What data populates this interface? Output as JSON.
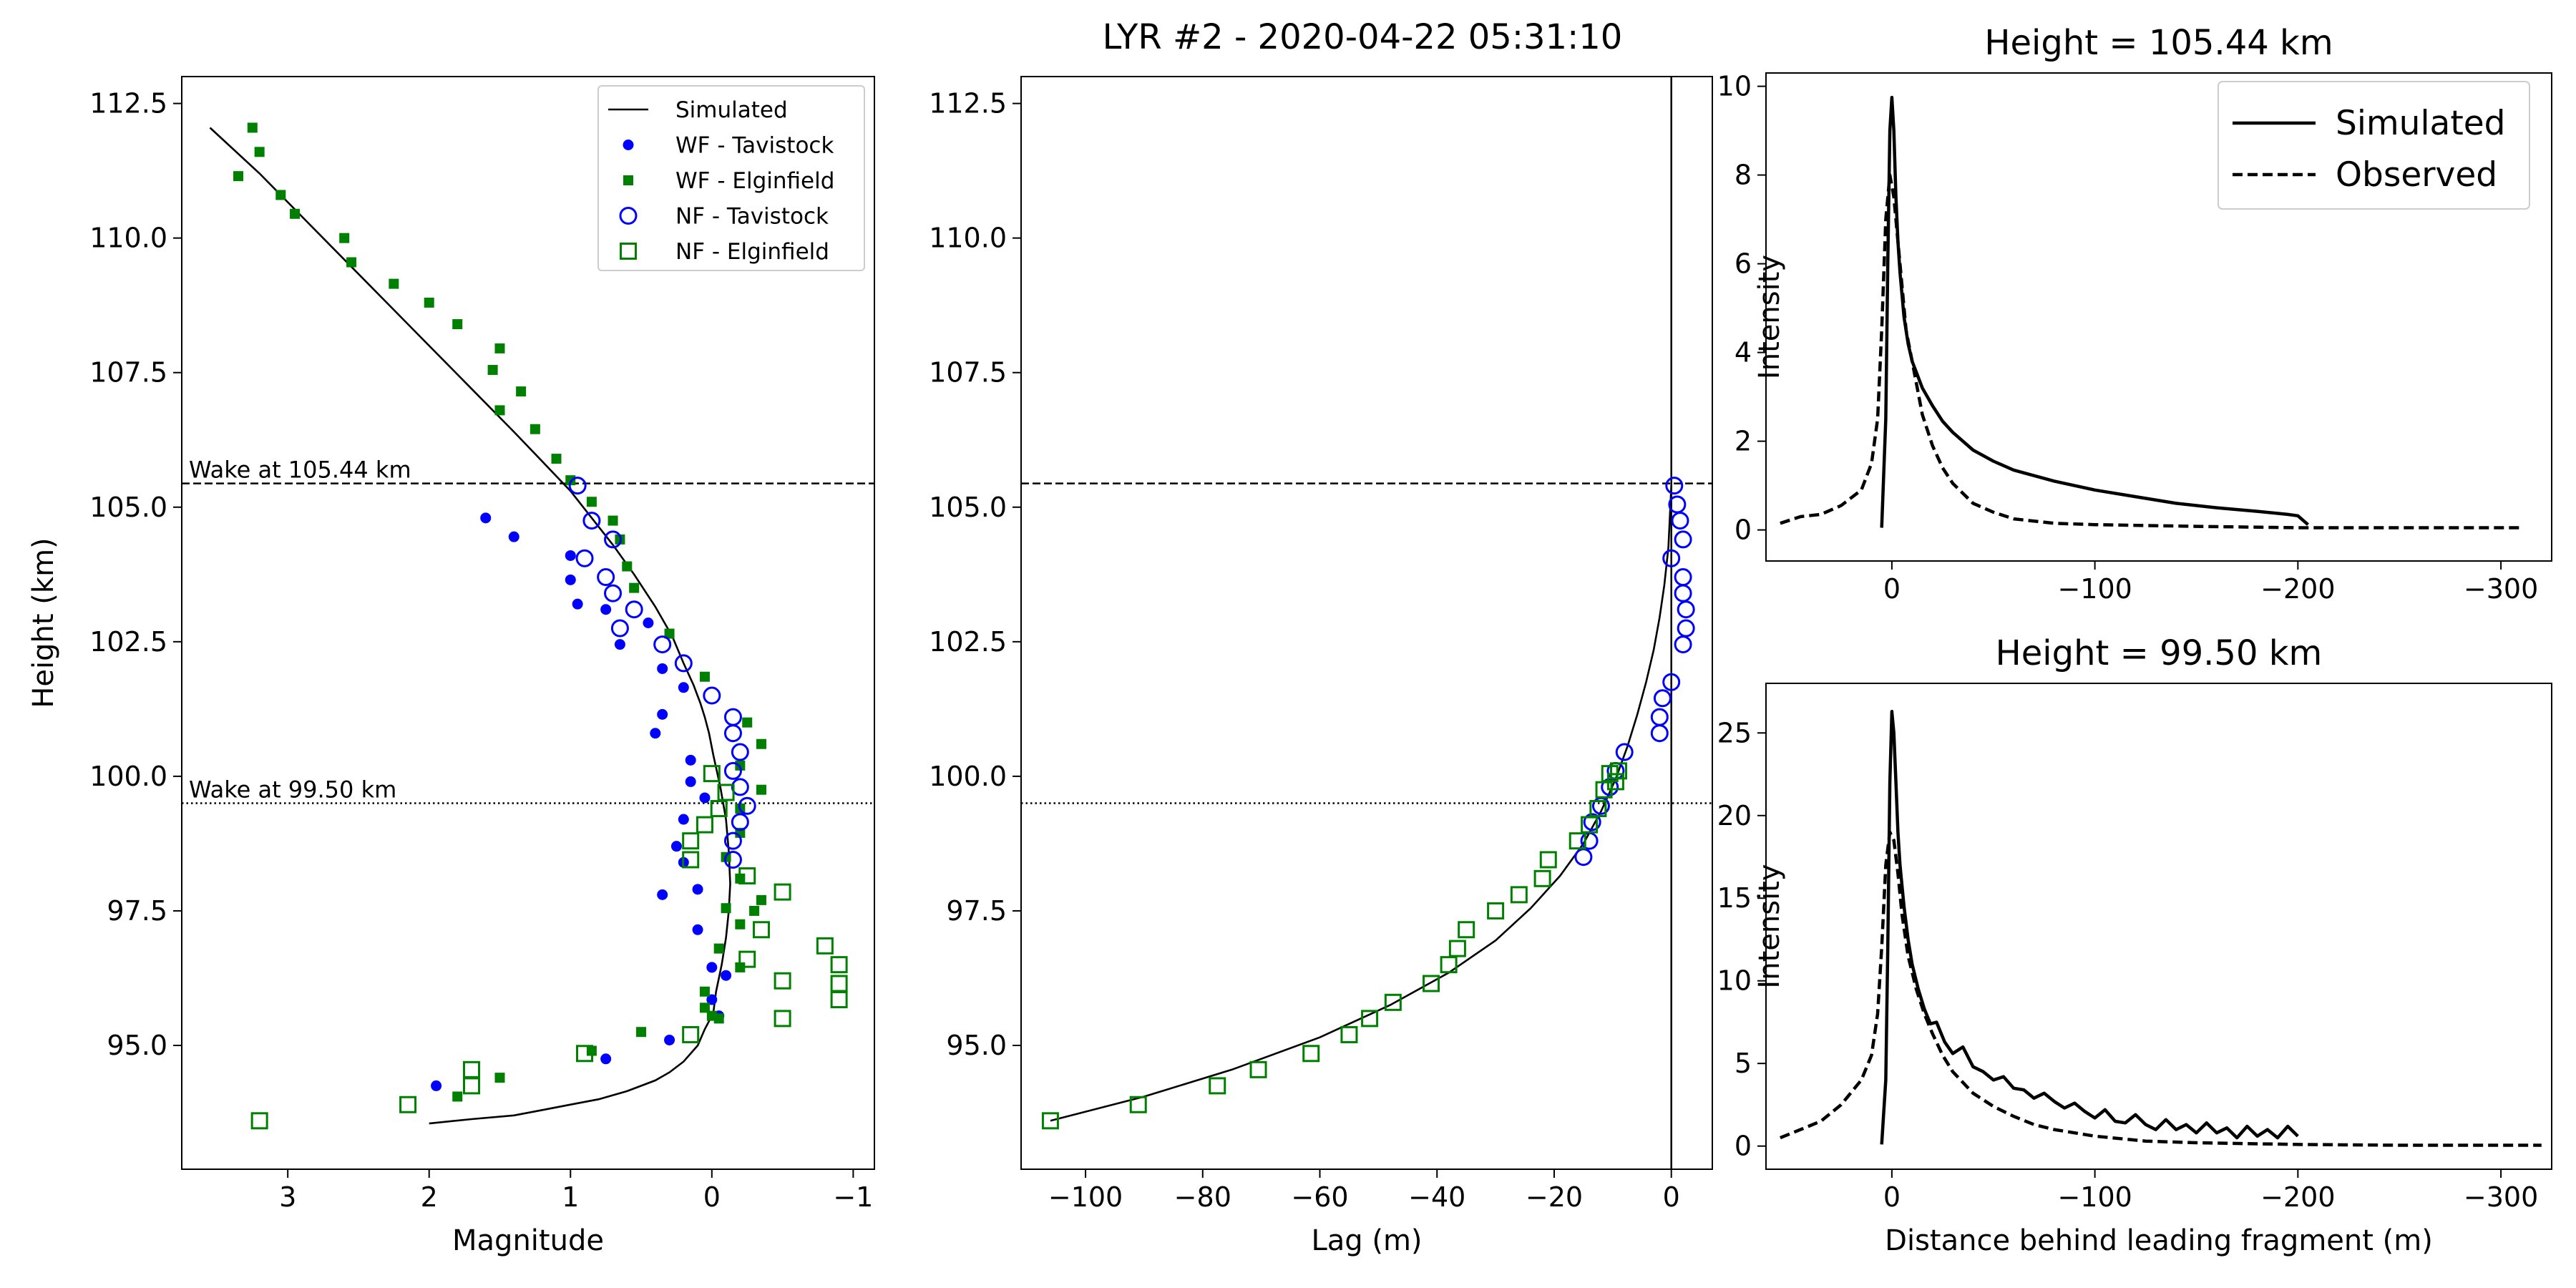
{
  "suptitle": "LYR #2 - 2020-04-22 05:31:10",
  "chart_data": [
    {
      "type": "scatter",
      "xlabel": "Magnitude",
      "ylabel": "Height (km)",
      "xlim": [
        3.75,
        -1.15
      ],
      "ylim": [
        92.7,
        113.0
      ],
      "x_inverted": true,
      "xticks": [
        3,
        2,
        1,
        0,
        -1
      ],
      "xtick_labels": [
        "3",
        "2",
        "1",
        "0",
        "−1"
      ],
      "yticks": [
        95.0,
        97.5,
        100.0,
        102.5,
        105.0,
        107.5,
        110.0,
        112.5
      ],
      "ytick_labels": [
        "95.0",
        "97.5",
        "100.0",
        "102.5",
        "105.0",
        "107.5",
        "110.0",
        "112.5"
      ],
      "hlines": [
        {
          "y": 105.44,
          "style": "dashed",
          "label": "Wake at 105.44 km"
        },
        {
          "y": 99.5,
          "style": "dotted",
          "label": "Wake at 99.50 km"
        }
      ],
      "legend_location": "upper right",
      "series": [
        {
          "name": "Simulated",
          "kind": "line",
          "color": "#000000",
          "x": [
            3.55,
            3.2,
            2.9,
            2.6,
            2.3,
            2.0,
            1.7,
            1.4,
            1.2,
            1.0,
            0.85,
            0.7,
            0.55,
            0.4,
            0.28,
            0.2,
            0.13,
            0.08,
            0.05,
            0.02,
            -0.01,
            -0.06,
            -0.1,
            -0.12,
            -0.13,
            -0.12,
            -0.1,
            -0.07,
            -0.03,
            -0.01,
            0.05,
            0.1,
            0.2,
            0.3,
            0.4,
            0.6,
            0.8,
            1.0,
            1.2,
            1.4,
            1.7,
            2.0
          ],
          "y": [
            112.05,
            111.2,
            110.4,
            109.6,
            108.8,
            108.0,
            107.2,
            106.4,
            105.85,
            105.3,
            104.8,
            104.3,
            103.75,
            103.15,
            102.6,
            102.1,
            101.7,
            101.35,
            101.1,
            100.8,
            100.4,
            99.8,
            99.2,
            98.6,
            98.0,
            97.5,
            97.0,
            96.5,
            96.0,
            95.6,
            95.3,
            95.0,
            94.7,
            94.5,
            94.35,
            94.15,
            94.0,
            93.9,
            93.8,
            93.7,
            93.63,
            93.55
          ]
        },
        {
          "name": "WF - Tavistock",
          "kind": "marker",
          "marker": "dot",
          "color": "#0000ff",
          "x": [
            1.6,
            1.4,
            1.0,
            1.0,
            0.95,
            0.75,
            0.65,
            0.45,
            0.35,
            0.2,
            0.35,
            0.4,
            0.15,
            0.15,
            0.2,
            0.05,
            0.25,
            0.2,
            0.35,
            0.1,
            0.1,
            0.0,
            -0.1,
            0.0,
            -0.05,
            0.3,
            0.75,
            1.95
          ],
          "y": [
            104.8,
            104.45,
            104.1,
            103.65,
            103.2,
            103.1,
            102.45,
            102.85,
            102.0,
            101.65,
            101.15,
            100.8,
            100.3,
            99.9,
            99.2,
            99.6,
            98.7,
            98.4,
            97.8,
            97.9,
            97.15,
            96.45,
            96.3,
            95.85,
            95.55,
            95.1,
            94.75,
            94.25
          ]
        },
        {
          "name": "WF - Elginfield",
          "kind": "marker",
          "marker": "square",
          "color": "#008000",
          "x": [
            3.25,
            3.2,
            3.35,
            3.05,
            2.95,
            2.6,
            2.55,
            2.25,
            2.0,
            1.8,
            1.55,
            1.5,
            1.5,
            1.35,
            1.25,
            1.1,
            1.0,
            0.85,
            0.7,
            0.65,
            0.6,
            0.55,
            0.3,
            0.05,
            -0.25,
            -0.35,
            -0.35,
            -0.2,
            -0.2,
            -0.2,
            -0.1,
            -0.2,
            -0.35,
            -0.3,
            -0.1,
            -0.2,
            -0.05,
            -0.2,
            0.05,
            0.05,
            0.0,
            -0.05,
            0.5,
            0.85,
            1.5,
            1.8
          ],
          "y": [
            112.05,
            111.6,
            111.15,
            110.8,
            110.45,
            110.0,
            109.55,
            109.15,
            108.8,
            108.4,
            107.55,
            107.95,
            106.8,
            107.15,
            106.45,
            105.9,
            105.5,
            105.1,
            104.75,
            104.4,
            103.9,
            103.5,
            102.65,
            101.85,
            101.0,
            100.6,
            99.75,
            100.2,
            99.4,
            98.95,
            98.5,
            98.1,
            97.7,
            97.5,
            97.55,
            97.25,
            96.8,
            96.45,
            96.0,
            95.7,
            95.55,
            95.5,
            95.25,
            94.9,
            94.4,
            94.05
          ]
        },
        {
          "name": "NF - Tavistock",
          "kind": "marker",
          "marker": "circle-open",
          "color": "#0000ff",
          "x": [
            0.95,
            0.85,
            0.7,
            0.9,
            0.75,
            0.7,
            0.55,
            0.65,
            0.35,
            0.2,
            0.0,
            -0.15,
            -0.15,
            -0.2,
            -0.15,
            -0.2,
            -0.25,
            -0.2,
            -0.15,
            -0.15
          ],
          "y": [
            105.4,
            104.75,
            104.4,
            104.05,
            103.7,
            103.4,
            103.1,
            102.75,
            102.45,
            102.1,
            101.5,
            101.1,
            100.8,
            100.45,
            100.1,
            99.8,
            99.45,
            99.15,
            98.8,
            98.45
          ]
        },
        {
          "name": "NF - Elginfield",
          "kind": "marker",
          "marker": "square-open",
          "color": "#008000",
          "x": [
            3.2,
            2.15,
            1.7,
            1.7,
            0.9,
            0.0,
            -0.1,
            0.15,
            0.15,
            0.05,
            -0.05,
            -0.25,
            -0.5,
            -0.35,
            -0.5,
            -0.8,
            -0.9,
            -0.9,
            -0.9,
            -0.5,
            -0.25,
            0.15
          ],
          "y": [
            93.6,
            93.9,
            94.25,
            94.55,
            94.85,
            100.05,
            99.7,
            98.8,
            98.45,
            99.1,
            99.4,
            98.15,
            97.85,
            97.15,
            95.5,
            96.85,
            96.5,
            96.15,
            95.85,
            96.2,
            96.6,
            95.2
          ]
        }
      ]
    },
    {
      "type": "scatter",
      "xlabel": "Lag (m)",
      "ylabel": "",
      "xlim": [
        -111,
        7
      ],
      "ylim": [
        92.7,
        113.0
      ],
      "xticks": [
        -100,
        -80,
        -60,
        -40,
        -20,
        0
      ],
      "xtick_labels": [
        "−100",
        "−80",
        "−60",
        "−40",
        "−20",
        "0"
      ],
      "yticks": [
        95.0,
        97.5,
        100.0,
        102.5,
        105.0,
        107.5,
        110.0,
        112.5
      ],
      "ytick_labels": [
        "95.0",
        "97.5",
        "100.0",
        "102.5",
        "105.0",
        "107.5",
        "110.0",
        "112.5"
      ],
      "vlines": [
        {
          "x": 0,
          "style": "solid"
        }
      ],
      "hlines": [
        {
          "y": 105.44,
          "style": "dashed"
        },
        {
          "y": 99.5,
          "style": "dotted"
        }
      ],
      "series": [
        {
          "kind": "line",
          "color": "#000000",
          "x": [
            -106,
            -90,
            -75,
            -60,
            -48,
            -38,
            -30,
            -24,
            -19,
            -15,
            -12,
            -9.5,
            -7.5,
            -5.8,
            -4.3,
            -3,
            -2,
            -1.2,
            -0.5,
            0
          ],
          "y": [
            93.6,
            94.05,
            94.55,
            95.15,
            95.75,
            96.35,
            96.95,
            97.55,
            98.15,
            98.75,
            99.35,
            99.95,
            100.55,
            101.15,
            101.75,
            102.35,
            102.95,
            103.55,
            104.25,
            105.4
          ]
        },
        {
          "name": "NF - Tavistock",
          "kind": "marker",
          "marker": "circle-open",
          "color": "#0000ff",
          "x": [
            0.5,
            1.0,
            1.5,
            2.0,
            0.0,
            2.0,
            2.0,
            2.5,
            2.5,
            2.0,
            0.0,
            -1.5,
            -2.0,
            -2.0,
            -8.0,
            -9.5,
            -10.5,
            -12.0,
            -13.5,
            -14.0,
            -15.0
          ],
          "y": [
            105.4,
            105.05,
            104.75,
            104.4,
            104.05,
            103.7,
            103.4,
            103.1,
            102.75,
            102.45,
            101.75,
            101.45,
            101.1,
            100.8,
            100.45,
            100.1,
            99.8,
            99.45,
            99.15,
            98.8,
            98.5
          ]
        },
        {
          "name": "NF - Elginfield",
          "kind": "marker",
          "marker": "square-open",
          "color": "#008000",
          "x": [
            -106,
            -91,
            -77.5,
            -70.5,
            -61.5,
            -55,
            -51.5,
            -47.5,
            -41,
            -38,
            -36.5,
            -35,
            -30,
            -26,
            -22,
            -21,
            -16,
            -14,
            -12.5,
            -11.5,
            -10.5,
            -9.5,
            -9
          ],
          "y": [
            93.6,
            93.9,
            94.25,
            94.55,
            94.85,
            95.2,
            95.5,
            95.8,
            96.15,
            96.5,
            96.8,
            97.15,
            97.5,
            97.8,
            98.1,
            98.45,
            98.8,
            99.1,
            99.4,
            99.75,
            100.05,
            99.9,
            100.1
          ]
        }
      ]
    },
    {
      "type": "line",
      "title": "Height = 105.44 km",
      "xlabel": "",
      "ylabel": "Intensity",
      "xlim": [
        62,
        -325
      ],
      "x_inverted": true,
      "ylim": [
        -0.7,
        10.3
      ],
      "xticks": [
        0,
        -100,
        -200,
        -300
      ],
      "xtick_labels": [
        "0",
        "−100",
        "−200",
        "−300"
      ],
      "yticks": [
        0,
        2,
        4,
        6,
        8,
        10
      ],
      "ytick_labels": [
        "0",
        "2",
        "4",
        "6",
        "8",
        "10"
      ],
      "legend_location": "upper right",
      "series": [
        {
          "name": "Simulated",
          "style": "solid",
          "x": [
            5,
            3,
            2,
            1,
            0,
            -1,
            -2,
            -3,
            -4,
            -6,
            -8,
            -10,
            -15,
            -20,
            -25,
            -30,
            -40,
            -50,
            -60,
            -80,
            -100,
            -120,
            -140,
            -160,
            -180,
            -195,
            -200,
            -205
          ],
          "y": [
            0.05,
            2.5,
            6.0,
            9.0,
            9.75,
            9.0,
            7.5,
            6.5,
            5.8,
            4.8,
            4.2,
            3.8,
            3.2,
            2.8,
            2.45,
            2.2,
            1.8,
            1.55,
            1.35,
            1.1,
            0.9,
            0.75,
            0.6,
            0.5,
            0.42,
            0.35,
            0.32,
            0.12
          ]
        },
        {
          "name": "Observed",
          "style": "dashed",
          "x": [
            55,
            45,
            35,
            25,
            15,
            10,
            7,
            5,
            3,
            1,
            -1,
            -3,
            -5,
            -7,
            -10,
            -15,
            -20,
            -25,
            -30,
            -40,
            -50,
            -60,
            -80,
            -100,
            -150,
            -200,
            -250,
            -310
          ],
          "y": [
            0.15,
            0.3,
            0.35,
            0.55,
            0.9,
            1.5,
            2.5,
            4.5,
            7.0,
            8.0,
            7.5,
            6.5,
            5.5,
            4.5,
            3.8,
            2.6,
            1.9,
            1.4,
            1.05,
            0.6,
            0.4,
            0.25,
            0.15,
            0.12,
            0.08,
            0.05,
            0.05,
            0.05
          ]
        }
      ]
    },
    {
      "type": "line",
      "title": "Height = 99.50 km",
      "xlabel": "Distance behind leading fragment (m)",
      "ylabel": "Intensity",
      "xlim": [
        62,
        -325
      ],
      "x_inverted": true,
      "ylim": [
        -1.4,
        28.0
      ],
      "xticks": [
        0,
        -100,
        -200,
        -300
      ],
      "xtick_labels": [
        "0",
        "−100",
        "−200",
        "−300"
      ],
      "yticks": [
        0,
        5,
        10,
        15,
        20,
        25
      ],
      "ytick_labels": [
        "0",
        "5",
        "10",
        "15",
        "20",
        "25"
      ],
      "series": [
        {
          "name": "Simulated",
          "style": "solid",
          "x": [
            5,
            3,
            2,
            1,
            0,
            -1,
            -2,
            -3,
            -4,
            -6,
            -8,
            -10,
            -13,
            -16,
            -19,
            -22,
            -26,
            -30,
            -35,
            -40,
            -45,
            -50,
            -55,
            -60,
            -65,
            -70,
            -75,
            -80,
            -85,
            -90,
            -95,
            -100,
            -105,
            -110,
            -115,
            -120,
            -125,
            -130,
            -135,
            -140,
            -145,
            -150,
            -155,
            -160,
            -165,
            -170,
            -175,
            -180,
            -185,
            -190,
            -195,
            -200
          ],
          "y": [
            0.1,
            4.0,
            12.0,
            22.0,
            26.3,
            25.0,
            22.0,
            19.0,
            17.0,
            14.5,
            12.5,
            11.0,
            9.5,
            8.3,
            7.4,
            7.5,
            6.3,
            5.6,
            6.0,
            4.8,
            4.5,
            4.0,
            4.2,
            3.5,
            3.4,
            2.9,
            3.2,
            2.7,
            2.3,
            2.6,
            2.1,
            1.7,
            2.2,
            1.5,
            1.4,
            1.9,
            1.3,
            1.0,
            1.6,
            1.0,
            1.3,
            0.8,
            1.4,
            0.8,
            1.1,
            0.5,
            1.2,
            0.6,
            1.0,
            0.5,
            1.2,
            0.6
          ]
        },
        {
          "name": "Observed",
          "style": "dashed",
          "x": [
            55,
            45,
            35,
            25,
            15,
            10,
            7,
            5,
            3,
            1,
            -1,
            -3,
            -5,
            -8,
            -12,
            -16,
            -20,
            -25,
            -30,
            -40,
            -50,
            -60,
            -70,
            -80,
            -100,
            -125,
            -150,
            -200,
            -250,
            -320
          ],
          "y": [
            0.5,
            1.0,
            1.5,
            2.5,
            4.0,
            5.5,
            8.0,
            12.0,
            17.0,
            19.0,
            18.5,
            16.5,
            14.0,
            11.5,
            9.5,
            8.0,
            6.8,
            5.5,
            4.5,
            3.2,
            2.4,
            1.8,
            1.3,
            1.0,
            0.6,
            0.3,
            0.2,
            0.1,
            0.05,
            0.05
          ]
        }
      ]
    }
  ]
}
